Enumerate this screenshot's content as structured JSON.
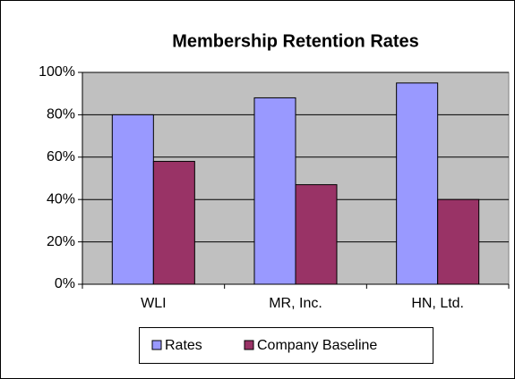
{
  "chart_data": {
    "type": "bar",
    "title": "Membership Retention Rates",
    "categories": [
      "WLI",
      "MR, Inc.",
      "HN, Ltd."
    ],
    "series": [
      {
        "name": "Rates",
        "color": "#9999ff",
        "values": [
          80,
          88,
          95
        ]
      },
      {
        "name": "Company Baseline",
        "color": "#993366",
        "values": [
          58,
          47,
          40
        ]
      }
    ],
    "ylim": [
      0,
      100
    ],
    "yticks": [
      {
        "value": 0,
        "label": "0%"
      },
      {
        "value": 20,
        "label": "20%"
      },
      {
        "value": 40,
        "label": "40%"
      },
      {
        "value": 60,
        "label": "60%"
      },
      {
        "value": 80,
        "label": "80%"
      },
      {
        "value": 100,
        "label": "100%"
      }
    ],
    "grid": true,
    "legend": "bottom"
  }
}
